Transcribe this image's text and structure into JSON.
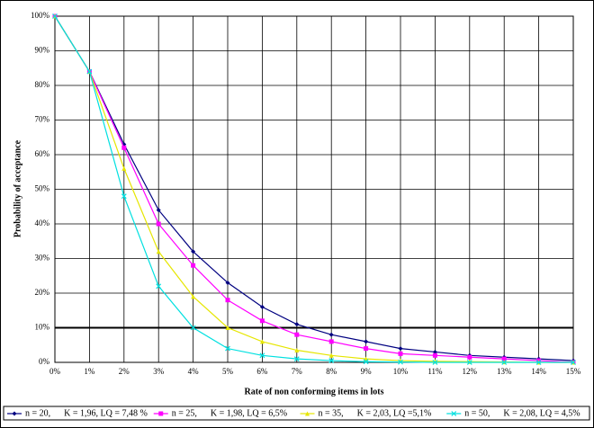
{
  "chart_data": {
    "type": "line",
    "x_label": "Rate of non conforming items in lots",
    "y_label": "Probability of acceptance",
    "x": [
      0,
      1,
      2,
      3,
      4,
      5,
      6,
      7,
      8,
      9,
      10,
      11,
      12,
      13,
      14,
      15
    ],
    "series": [
      {
        "name": "n = 20,      K = 1,96, LQ = 7,48 %",
        "color": "#000080",
        "marker": "diamond",
        "values": [
          100,
          84,
          63,
          44,
          32,
          23,
          16,
          11,
          8,
          6,
          4,
          3,
          2,
          1.5,
          1,
          0.5
        ]
      },
      {
        "name": "n = 25,      K = 1,98, LQ = 6,5%",
        "color": "#ff00ff",
        "marker": "square",
        "values": [
          100,
          84,
          62,
          40,
          28,
          18,
          12,
          8,
          6,
          4,
          2.5,
          2,
          1.5,
          1,
          0.5,
          0
        ]
      },
      {
        "name": "n = 35,      K = 2,03, LQ =5,1%",
        "color": "#e6e600",
        "marker": "triangle",
        "values": [
          100,
          84,
          56,
          32,
          19,
          10,
          6,
          3.5,
          2,
          1,
          0.5,
          0.3,
          0.2,
          0.1,
          0,
          0
        ]
      },
      {
        "name": "n = 50,      K = 2,08, LQ = 4,5%",
        "color": "#00e0e0",
        "marker": "cross",
        "values": [
          100,
          84,
          48,
          22,
          10,
          4,
          2,
          1,
          0.5,
          0.2,
          0.1,
          0,
          0,
          0,
          0,
          0
        ]
      }
    ],
    "xlim": [
      0,
      15
    ],
    "ylim": [
      0,
      100
    ],
    "xticks": [
      {
        "value": 0,
        "label": "0%"
      },
      {
        "value": 1,
        "label": "1%"
      },
      {
        "value": 2,
        "label": "2%"
      },
      {
        "value": 3,
        "label": "3%"
      },
      {
        "value": 4,
        "label": "4%"
      },
      {
        "value": 5,
        "label": "5%"
      },
      {
        "value": 6,
        "label": "6%"
      },
      {
        "value": 7,
        "label": "7%"
      },
      {
        "value": 8,
        "label": "8%"
      },
      {
        "value": 9,
        "label": "9%"
      },
      {
        "value": 10,
        "label": "10%"
      },
      {
        "value": 11,
        "label": "11%"
      },
      {
        "value": 12,
        "label": "12%"
      },
      {
        "value": 13,
        "label": "13%"
      },
      {
        "value": 14,
        "label": "14%"
      },
      {
        "value": 15,
        "label": "15%"
      }
    ],
    "yticks": [
      {
        "value": 0,
        "label": "0%"
      },
      {
        "value": 10,
        "label": "10%"
      },
      {
        "value": 20,
        "label": "20%"
      },
      {
        "value": 30,
        "label": "30%"
      },
      {
        "value": 40,
        "label": "40%"
      },
      {
        "value": 50,
        "label": "50%"
      },
      {
        "value": 60,
        "label": "60%"
      },
      {
        "value": 70,
        "label": "70%"
      },
      {
        "value": 80,
        "label": "80%"
      },
      {
        "value": 90,
        "label": "90%"
      },
      {
        "value": 100,
        "label": "100%"
      }
    ],
    "hline": 10,
    "grid": true,
    "legend": "bottom"
  }
}
